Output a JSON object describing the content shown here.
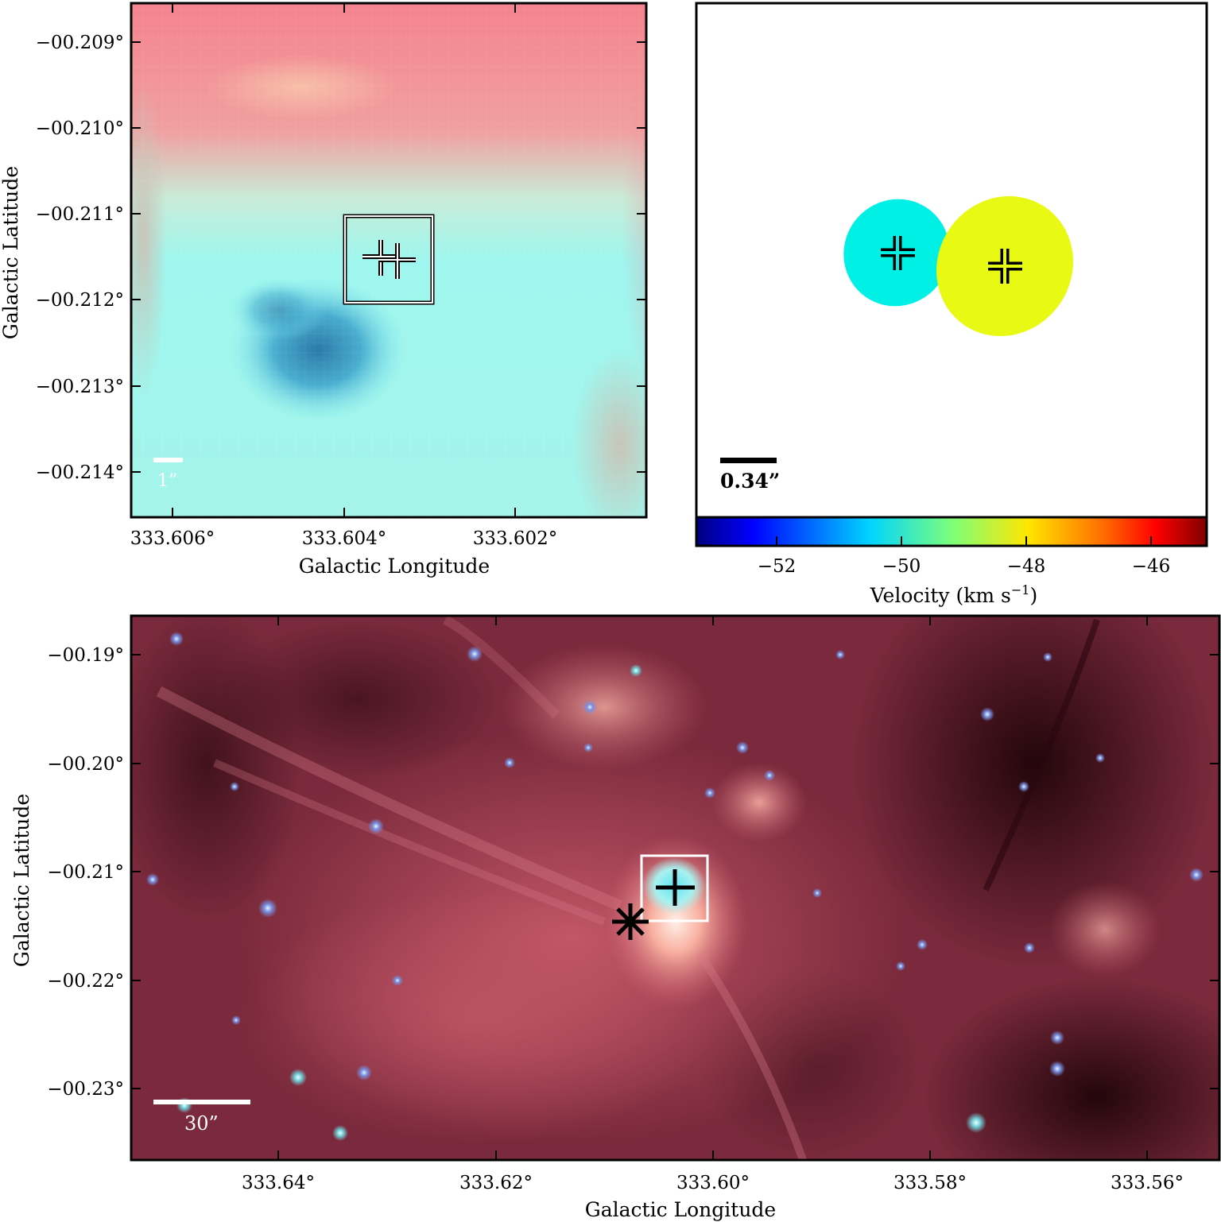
{
  "panel_top_left": {
    "y_ticks": [
      "−00.209°",
      "−00.210°",
      "−00.211°",
      "−00.212°",
      "−00.213°",
      "−00.214°"
    ],
    "x_ticks": [
      "333.606°",
      "333.604°",
      "333.602°"
    ],
    "ylabel": "Galactic Latitude",
    "xlabel": "Galactic Longitude",
    "scalebar_label": "1”"
  },
  "panel_top_right": {
    "scalebar_label": "0.34”",
    "colorbar": {
      "ticks": [
        "−52",
        "−50",
        "−48",
        "−46"
      ],
      "label": "Velocity (km s",
      "label_sup": "−1",
      "label_end": ")",
      "colors": [
        "#00007f",
        "#0000ff",
        "#007fff",
        "#00ffff",
        "#7fff7f",
        "#ffff00",
        "#ff7f00",
        "#ff0000",
        "#7f0000"
      ]
    },
    "sources": [
      {
        "color": "#00f0e6"
      },
      {
        "color": "#e8fa14"
      }
    ]
  },
  "panel_bottom": {
    "y_ticks": [
      "−00.19°",
      "−00.20°",
      "−00.21°",
      "−00.22°",
      "−00.23°"
    ],
    "x_ticks": [
      "333.64°",
      "333.62°",
      "333.60°",
      "333.58°",
      "333.56°"
    ],
    "ylabel": "Galactic Latitude",
    "xlabel": "Galactic Longitude",
    "scalebar_label": "30”"
  }
}
